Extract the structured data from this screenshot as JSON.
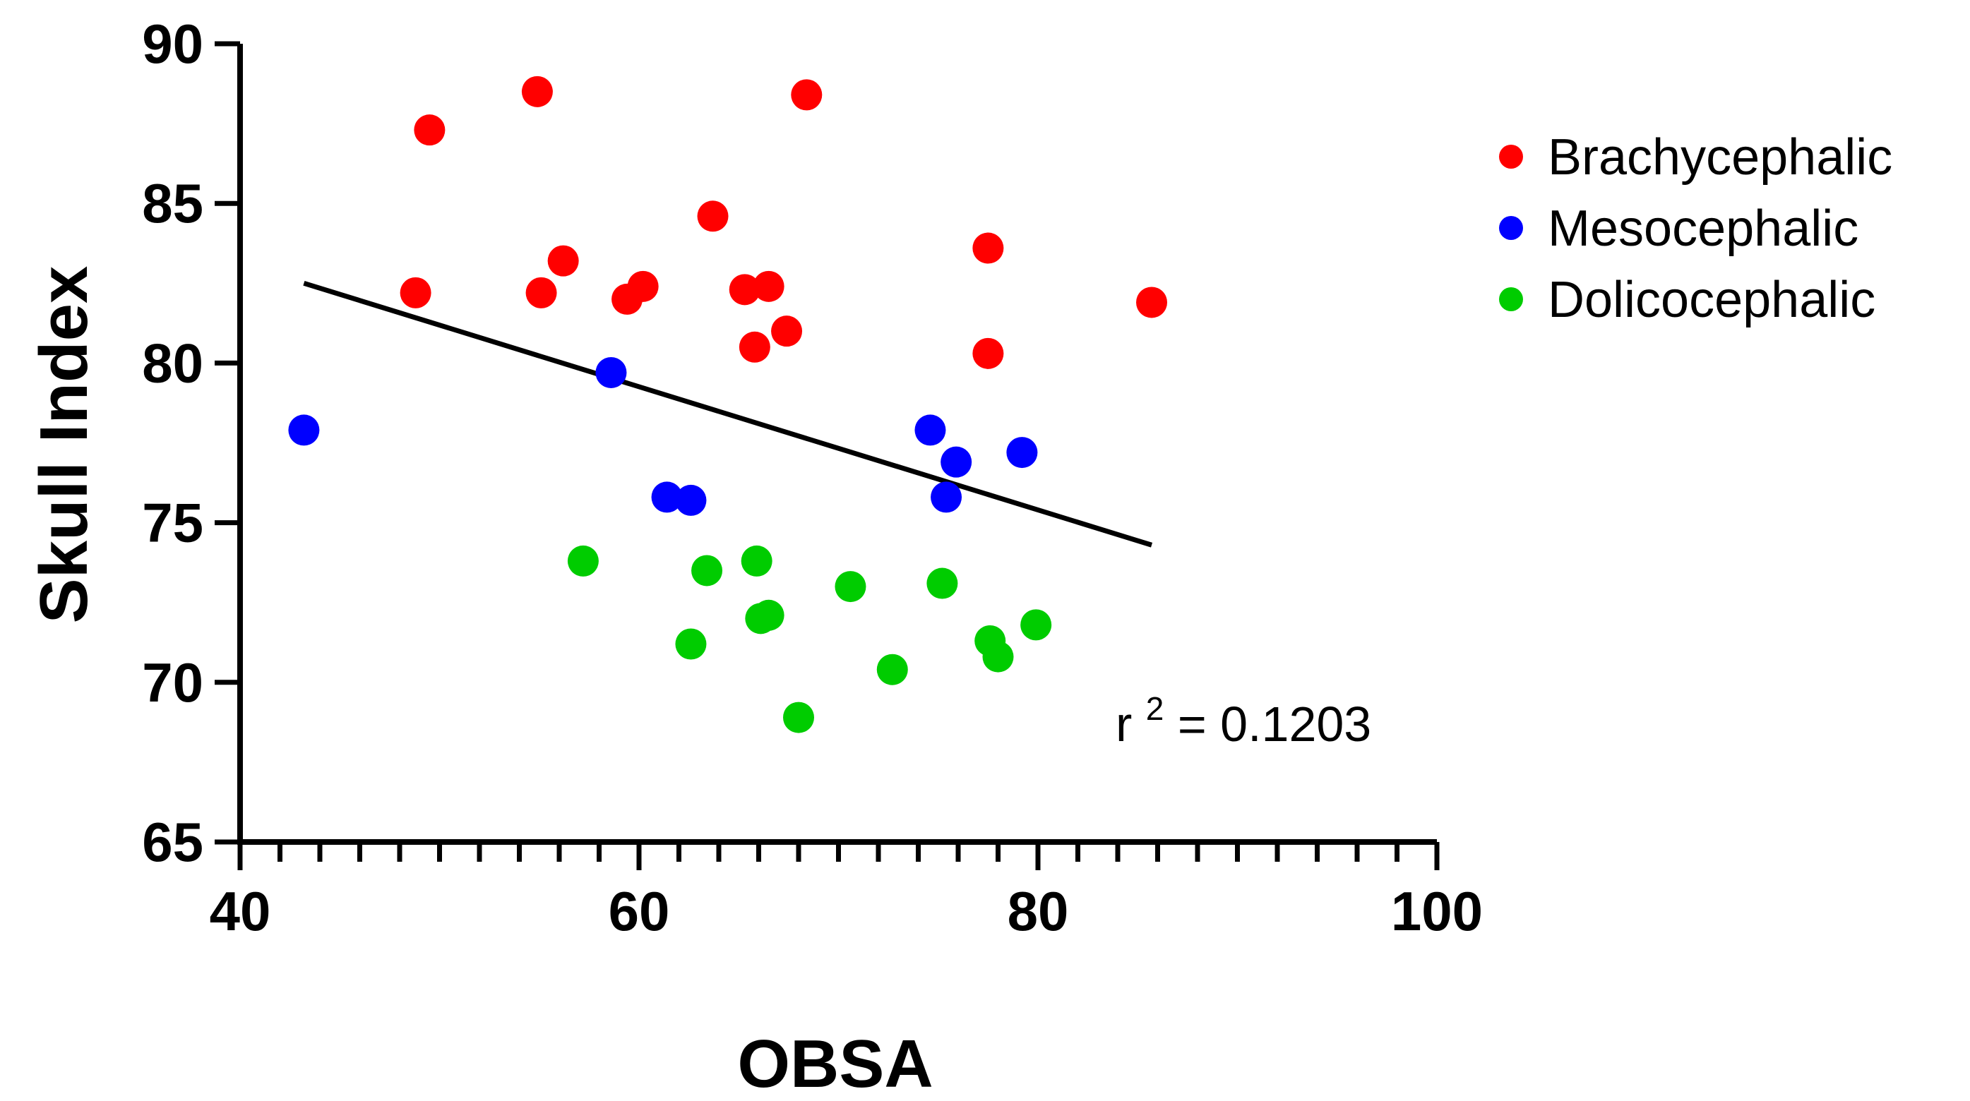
{
  "chart_data": {
    "type": "scatter",
    "title": "",
    "xlabel": "OBSA",
    "ylabel": "Skull Index",
    "xlim": [
      40,
      100
    ],
    "ylim": [
      65,
      90
    ],
    "x_ticks": [
      "40",
      "60",
      "80",
      "100"
    ],
    "y_ticks": [
      "65",
      "70",
      "75",
      "80",
      "85",
      "90"
    ],
    "x_minor_step": 2,
    "grid": false,
    "legend_position": "top-right, outside plot",
    "series": [
      {
        "name": "Brachycephalic",
        "color": "#ff0000",
        "points": [
          [
            48.8,
            82.2
          ],
          [
            49.5,
            87.3
          ],
          [
            54.9,
            88.5
          ],
          [
            55.1,
            82.2
          ],
          [
            56.2,
            83.2
          ],
          [
            59.4,
            82.0
          ],
          [
            60.2,
            82.4
          ],
          [
            63.7,
            84.6
          ],
          [
            65.3,
            82.3
          ],
          [
            65.8,
            80.5
          ],
          [
            66.5,
            82.4
          ],
          [
            67.4,
            81.0
          ],
          [
            68.4,
            88.4
          ],
          [
            77.5,
            83.6
          ],
          [
            77.5,
            80.3
          ],
          [
            85.7,
            81.9
          ]
        ]
      },
      {
        "name": "Mesocephalic",
        "color": "#0000ff",
        "points": [
          [
            43.2,
            77.9
          ],
          [
            58.6,
            79.7
          ],
          [
            61.4,
            75.8
          ],
          [
            62.6,
            75.7
          ],
          [
            74.6,
            77.9
          ],
          [
            75.4,
            75.8
          ],
          [
            75.9,
            76.9
          ],
          [
            79.2,
            77.2
          ]
        ]
      },
      {
        "name": "Dolicocephalic",
        "color": "#00cc00",
        "points": [
          [
            57.2,
            73.8
          ],
          [
            62.6,
            71.2
          ],
          [
            63.4,
            73.5
          ],
          [
            65.9,
            73.8
          ],
          [
            66.1,
            72.0
          ],
          [
            66.5,
            72.1
          ],
          [
            68.0,
            68.9
          ],
          [
            70.6,
            73.0
          ],
          [
            72.7,
            70.4
          ],
          [
            75.2,
            73.1
          ],
          [
            77.6,
            71.3
          ],
          [
            78.0,
            70.8
          ],
          [
            79.9,
            71.8
          ]
        ]
      }
    ],
    "regression": {
      "x": [
        43.2,
        85.7
      ],
      "y": [
        82.5,
        74.3
      ],
      "color": "#000000"
    },
    "annotation": {
      "base": "r",
      "superscript": "2",
      "rest": " = 0.1203"
    }
  }
}
